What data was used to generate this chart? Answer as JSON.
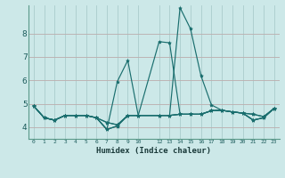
{
  "xlabel": "Humidex (Indice chaleur)",
  "background_color": "#cce8e8",
  "grid_color": "#aacccc",
  "line_color": "#1a6e6e",
  "ylim": [
    3.5,
    9.2
  ],
  "yticks": [
    4,
    5,
    6,
    7,
    8
  ],
  "xlim": [
    -0.5,
    23.5
  ],
  "x_ticks": [
    0,
    1,
    2,
    3,
    4,
    5,
    6,
    7,
    8,
    9,
    10,
    12,
    13,
    14,
    15,
    16,
    17,
    18,
    19,
    20,
    21,
    22,
    23
  ],
  "x_tick_labels": [
    "0",
    "1",
    "2",
    "3",
    "4",
    "5",
    "6",
    "7",
    "8",
    "9",
    "10",
    "12",
    "13",
    "14",
    "15",
    "16",
    "17",
    "18",
    "19",
    "20",
    "21",
    "22",
    "23"
  ],
  "series": [
    {
      "x": [
        0,
        1,
        2,
        3,
        4,
        5,
        6,
        7,
        8,
        9,
        10,
        12,
        13,
        14,
        15,
        16,
        17,
        18,
        19,
        20,
        21,
        22,
        23
      ],
      "y": [
        4.9,
        4.4,
        4.3,
        4.5,
        4.5,
        4.5,
        4.4,
        4.2,
        4.1,
        4.5,
        4.5,
        4.5,
        4.5,
        9.1,
        8.2,
        6.2,
        4.95,
        4.72,
        4.65,
        4.6,
        4.55,
        4.45,
        4.8
      ]
    },
    {
      "x": [
        0,
        1,
        2,
        3,
        4,
        5,
        6,
        7,
        8,
        9,
        10,
        12,
        13,
        14,
        15,
        16,
        17,
        18,
        19,
        20,
        21,
        22,
        23
      ],
      "y": [
        4.9,
        4.4,
        4.3,
        4.5,
        4.5,
        4.5,
        4.4,
        4.2,
        4.1,
        4.5,
        4.5,
        7.65,
        7.6,
        4.55,
        4.55,
        4.55,
        4.7,
        4.72,
        4.65,
        4.6,
        4.55,
        4.45,
        4.8
      ]
    },
    {
      "x": [
        0,
        1,
        2,
        3,
        4,
        5,
        6,
        7,
        8,
        9,
        10,
        12,
        13,
        14,
        15,
        16,
        17,
        18,
        19,
        20,
        21,
        22,
        23
      ],
      "y": [
        4.9,
        4.4,
        4.3,
        4.5,
        4.5,
        4.5,
        4.4,
        3.9,
        4.05,
        4.5,
        4.5,
        4.5,
        4.5,
        4.55,
        4.55,
        4.55,
        4.7,
        4.72,
        4.65,
        4.6,
        4.3,
        4.4,
        4.8
      ]
    },
    {
      "x": [
        0,
        1,
        2,
        3,
        4,
        5,
        6,
        7,
        8,
        9,
        10,
        12,
        13,
        14,
        15,
        16,
        17,
        18,
        19,
        20,
        21,
        22,
        23
      ],
      "y": [
        4.9,
        4.4,
        4.3,
        4.5,
        4.5,
        4.5,
        4.4,
        3.9,
        4.05,
        4.5,
        4.5,
        4.5,
        4.5,
        4.55,
        4.55,
        4.55,
        4.7,
        4.72,
        4.65,
        4.6,
        4.3,
        4.4,
        4.8
      ]
    },
    {
      "x": [
        0,
        1,
        2,
        3,
        4,
        5,
        6,
        7,
        8,
        9,
        10,
        12,
        13,
        14,
        15,
        16,
        17,
        18,
        19,
        20,
        21,
        22,
        23
      ],
      "y": [
        4.9,
        4.4,
        4.3,
        4.5,
        4.5,
        4.5,
        4.4,
        3.9,
        5.95,
        6.85,
        4.5,
        4.5,
        4.5,
        4.55,
        4.55,
        4.55,
        4.7,
        4.72,
        4.65,
        4.6,
        4.3,
        4.4,
        4.8
      ]
    }
  ]
}
